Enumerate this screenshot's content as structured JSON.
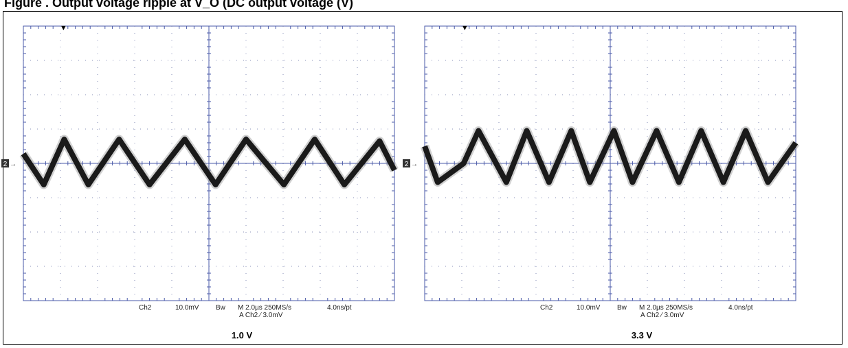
{
  "figure": {
    "title": "Figure . Output voltage ripple at V_O (DC output voltage (V)"
  },
  "chart_data": [
    {
      "type": "line",
      "panel_label": "1.0 V",
      "grid": true,
      "x_divisions": 10,
      "y_divisions": 8,
      "trigger_marker": "▼",
      "channel_marker": "2",
      "series": [
        {
          "color": "#1a1a1a",
          "x": [
            0.0,
            0.55,
            1.1,
            1.75,
            2.58,
            3.4,
            4.35,
            5.18,
            6.0,
            7.02,
            7.85,
            8.65,
            9.6,
            10.0
          ],
          "y": [
            0.28,
            -0.62,
            0.7,
            -0.62,
            0.7,
            -0.62,
            0.7,
            -0.62,
            0.7,
            -0.62,
            0.7,
            -0.62,
            0.65,
            -0.2
          ]
        }
      ],
      "status": {
        "channel": "Ch2",
        "volts_per_div": "10.0mV",
        "bw_symbol": "Bw",
        "timebase": "M 2.0µs 250MS/s",
        "trigger": "A  Ch2  ⁄  3.0mV",
        "resolution": "4.0ns/pt"
      }
    },
    {
      "type": "line",
      "panel_label": "3.3 V",
      "grid": true,
      "x_divisions": 10,
      "y_divisions": 8,
      "trigger_marker": "▼",
      "channel_marker": "2",
      "series": [
        {
          "color": "#1a1a1a",
          "x": [
            0.0,
            0.35,
            1.05,
            1.45,
            2.2,
            2.75,
            3.35,
            3.95,
            4.45,
            5.1,
            5.6,
            6.25,
            6.85,
            7.45,
            8.05,
            8.65,
            9.25,
            10.0
          ],
          "y": [
            0.5,
            -0.55,
            0.0,
            0.95,
            -0.55,
            0.95,
            -0.55,
            0.95,
            -0.55,
            0.95,
            -0.55,
            0.95,
            -0.55,
            0.95,
            -0.55,
            0.95,
            -0.55,
            0.6
          ]
        }
      ],
      "status": {
        "channel": "Ch2",
        "volts_per_div": "10.0mV",
        "bw_symbol": "Bw",
        "timebase": "M 2.0µs 250MS/s",
        "trigger": "A  Ch2  ⁄  3.0mV",
        "resolution": "4.0ns/pt"
      }
    }
  ]
}
